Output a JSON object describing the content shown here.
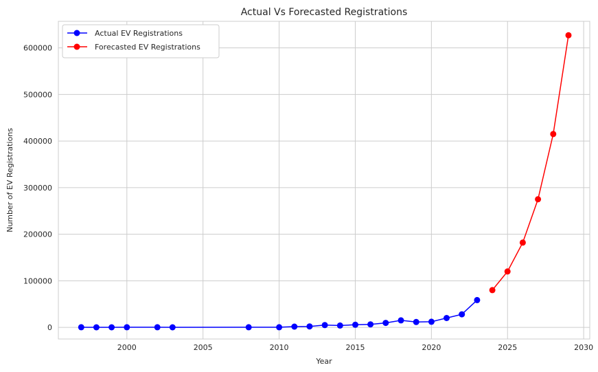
{
  "chart_data": {
    "type": "line",
    "title": "Actual Vs Forecasted Registrations",
    "xlabel": "Year",
    "ylabel": "Number of EV Registrations",
    "xlim": [
      1995.5,
      2030.4
    ],
    "ylim": [
      -25000,
      657000
    ],
    "x_ticks": [
      2000,
      2005,
      2010,
      2015,
      2020,
      2025,
      2030
    ],
    "y_ticks": [
      0,
      100000,
      200000,
      300000,
      400000,
      500000,
      600000
    ],
    "grid": true,
    "legend_position": "top-left",
    "series": [
      {
        "name": "Actual EV Registrations",
        "color": "#0000ff",
        "points": [
          [
            1997,
            200
          ],
          [
            1998,
            100
          ],
          [
            1999,
            150
          ],
          [
            2000,
            200
          ],
          [
            2002,
            250
          ],
          [
            2003,
            150
          ],
          [
            2008,
            200
          ],
          [
            2010,
            300
          ],
          [
            2011,
            1500
          ],
          [
            2012,
            2000
          ],
          [
            2013,
            4800
          ],
          [
            2014,
            4000
          ],
          [
            2015,
            5500
          ],
          [
            2016,
            6500
          ],
          [
            2017,
            9500
          ],
          [
            2018,
            15000
          ],
          [
            2019,
            11500
          ],
          [
            2020,
            12000
          ],
          [
            2021,
            20000
          ],
          [
            2022,
            28000
          ],
          [
            2023,
            58500
          ]
        ]
      },
      {
        "name": "Forecasted EV Registrations",
        "color": "#ff0000",
        "points": [
          [
            2024,
            80000
          ],
          [
            2025,
            120000
          ],
          [
            2026,
            182000
          ],
          [
            2027,
            275000
          ],
          [
            2028,
            415000
          ],
          [
            2029,
            627000
          ]
        ]
      }
    ]
  }
}
